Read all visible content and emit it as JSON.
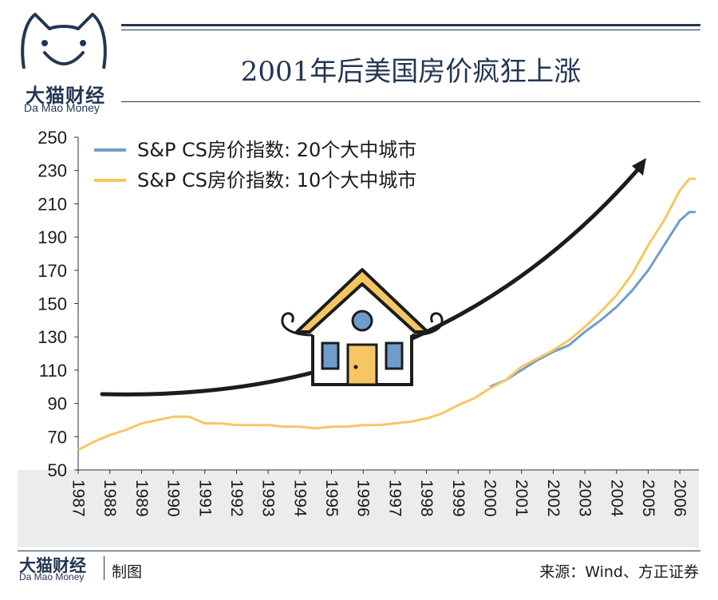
{
  "brand": {
    "name_cn": "大猫财经",
    "name_en": "Da Mao Money"
  },
  "header": {
    "title": "2001年后美国房价疯狂上涨"
  },
  "footer": {
    "made_by": "制图",
    "source": "来源：Wind、方正证券"
  },
  "colors": {
    "navy": "#233654",
    "series20": "#6f9dcb",
    "series10": "#f6c664",
    "arrow": "#1c1c1c",
    "house_fill": "#f6c664",
    "house_window": "#6f9dcb"
  },
  "illustration": {
    "house": "house-icon",
    "arrow": "upward-curved-arrow"
  },
  "chart_data": {
    "type": "line",
    "title": "2001年后美国房价疯狂上涨",
    "xlabel": "",
    "ylabel": "",
    "xlim": [
      1987.0,
      2006.6
    ],
    "ylim": [
      50,
      250
    ],
    "yticks": [
      "50",
      "70",
      "90",
      "110",
      "130",
      "150",
      "170",
      "190",
      "210",
      "230",
      "250"
    ],
    "xticks": [
      "1987",
      "1988",
      "1989",
      "1990",
      "1991",
      "1992",
      "1993",
      "1994",
      "1995",
      "1996",
      "1997",
      "1998",
      "1999",
      "2000",
      "2001",
      "2002",
      "2003",
      "2004",
      "2005",
      "2006"
    ],
    "legend_position": "top-left",
    "series": [
      {
        "name": "S&P CS房价指数: 20个大中城市",
        "color": "#6f9dcb",
        "x": [
          2000.0,
          2000.5,
          2001.0,
          2001.5,
          2002.0,
          2002.5,
          2003.0,
          2003.5,
          2004.0,
          2004.5,
          2005.0,
          2005.5,
          2006.0,
          2006.3,
          2006.5
        ],
        "y": [
          100,
          104,
          110,
          116,
          121,
          125,
          133,
          140,
          148,
          158,
          170,
          185,
          200,
          205,
          205
        ]
      },
      {
        "name": "S&P CS房价指数: 10个大中城市",
        "color": "#f6c664",
        "x": [
          1987.0,
          1987.5,
          1988.0,
          1988.5,
          1989.0,
          1989.5,
          1990.0,
          1990.5,
          1991.0,
          1991.5,
          1992.0,
          1992.5,
          1993.0,
          1993.5,
          1994.0,
          1994.5,
          1995.0,
          1995.5,
          1996.0,
          1996.5,
          1997.0,
          1997.5,
          1998.0,
          1998.5,
          1999.0,
          1999.5,
          2000.0,
          2000.5,
          2001.0,
          2001.5,
          2002.0,
          2002.5,
          2003.0,
          2003.5,
          2004.0,
          2004.5,
          2005.0,
          2005.5,
          2006.0,
          2006.3,
          2006.5
        ],
        "y": [
          62,
          67,
          71,
          74,
          78,
          80,
          82,
          82,
          78,
          78,
          77,
          77,
          77,
          76,
          76,
          75,
          76,
          76,
          77,
          77,
          78,
          79,
          81,
          84,
          89,
          93,
          99,
          104,
          112,
          117,
          122,
          128,
          136,
          145,
          155,
          168,
          185,
          200,
          218,
          225,
          225
        ]
      }
    ]
  }
}
